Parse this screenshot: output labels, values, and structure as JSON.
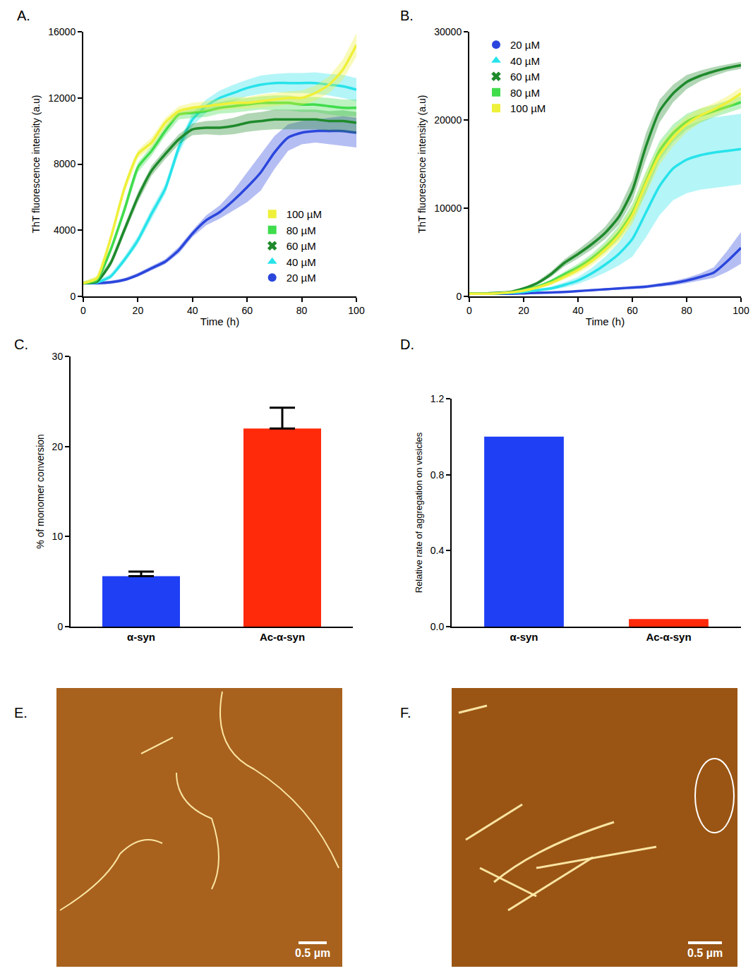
{
  "chart_data": [
    {
      "panel": "A.",
      "type": "line",
      "x_label": "Time (h)",
      "y_label": "ThT fluorescence intensity (a.u)",
      "x": [
        0,
        5,
        10,
        15,
        20,
        25,
        30,
        35,
        40,
        45,
        50,
        55,
        60,
        65,
        70,
        75,
        80,
        85,
        90,
        95,
        100
      ],
      "xlim": [
        0,
        100
      ],
      "xticks": [
        0,
        20,
        40,
        60,
        80,
        100
      ],
      "ylim": [
        0,
        16000
      ],
      "yticks": [
        0,
        4000,
        8000,
        12000,
        16000
      ],
      "legend": "lower right",
      "series": [
        {
          "name": "20 µM",
          "color": "#2b46dc",
          "marker": "circle",
          "values": [
            800,
            800,
            850,
            1000,
            1300,
            1700,
            2100,
            2800,
            3800,
            4600,
            5100,
            5800,
            6600,
            7500,
            8700,
            9600,
            9900,
            10000,
            10000,
            10000,
            9900
          ],
          "error": [
            100,
            100,
            100,
            100,
            120,
            150,
            150,
            200,
            200,
            300,
            400,
            600,
            900,
            1100,
            1000,
            800,
            700,
            700,
            800,
            900,
            900
          ]
        },
        {
          "name": "40 µM",
          "color": "#27e3ea",
          "marker": "triangle-up",
          "values": [
            800,
            850,
            1200,
            2200,
            3400,
            5000,
            6500,
            9000,
            10700,
            11500,
            12000,
            12300,
            12600,
            12800,
            12900,
            12900,
            12900,
            12900,
            12800,
            12700,
            12500
          ],
          "error": [
            100,
            100,
            150,
            200,
            250,
            300,
            300,
            350,
            400,
            400,
            450,
            500,
            500,
            550,
            550,
            600,
            600,
            650,
            650,
            700,
            700
          ]
        },
        {
          "name": "60 µM",
          "color": "#1f8a2c",
          "marker": "x",
          "values": [
            800,
            900,
            2000,
            4000,
            6000,
            7600,
            8600,
            9500,
            10100,
            10200,
            10200,
            10300,
            10500,
            10600,
            10700,
            10700,
            10700,
            10700,
            10600,
            10600,
            10500
          ],
          "error": [
            100,
            100,
            200,
            250,
            300,
            300,
            300,
            300,
            350,
            400,
            450,
            500,
            550,
            550,
            600,
            600,
            600,
            600,
            600,
            650,
            650
          ]
        },
        {
          "name": "80 µM",
          "color": "#3fdc4c",
          "marker": "square",
          "values": [
            800,
            1000,
            2800,
            5200,
            7800,
            8800,
            10000,
            11000,
            11100,
            11200,
            11400,
            11500,
            11600,
            11700,
            11700,
            11700,
            11600,
            11600,
            11500,
            11400,
            11400
          ],
          "error": [
            100,
            150,
            200,
            250,
            300,
            300,
            300,
            300,
            300,
            350,
            350,
            400,
            400,
            400,
            450,
            450,
            450,
            450,
            500,
            500,
            500
          ]
        },
        {
          "name": "100 µM",
          "color": "#eef03a",
          "marker": "square",
          "values": [
            800,
            1100,
            3500,
            6500,
            8600,
            9300,
            10500,
            11200,
            11400,
            11500,
            11600,
            11700,
            11700,
            11800,
            11900,
            12000,
            12000,
            12300,
            12800,
            13700,
            15200
          ],
          "error": [
            100,
            150,
            200,
            250,
            250,
            300,
            300,
            300,
            300,
            300,
            350,
            350,
            350,
            400,
            400,
            400,
            450,
            450,
            500,
            600,
            700
          ]
        }
      ]
    },
    {
      "panel": "B.",
      "type": "line",
      "x_label": "Time (h)",
      "y_label": "ThT fluorescence intensity (a.u)",
      "x": [
        0,
        5,
        10,
        15,
        20,
        25,
        30,
        35,
        40,
        45,
        50,
        55,
        60,
        65,
        70,
        75,
        80,
        85,
        90,
        95,
        100
      ],
      "xlim": [
        0,
        100
      ],
      "xticks": [
        0,
        20,
        40,
        60,
        80,
        100
      ],
      "ylim": [
        0,
        30000
      ],
      "yticks": [
        0,
        10000,
        20000,
        30000
      ],
      "legend": "upper left",
      "series": [
        {
          "name": "20 µM",
          "color": "#2b46dc",
          "marker": "circle",
          "values": [
            300,
            300,
            300,
            300,
            350,
            400,
            450,
            500,
            600,
            700,
            800,
            900,
            1000,
            1100,
            1300,
            1500,
            1800,
            2200,
            2700,
            4000,
            5500
          ],
          "error": [
            50,
            50,
            50,
            50,
            50,
            60,
            70,
            80,
            90,
            100,
            120,
            140,
            160,
            180,
            200,
            250,
            300,
            400,
            600,
            1200,
            1800
          ]
        },
        {
          "name": "40 µM",
          "color": "#27e3ea",
          "marker": "triangle-up",
          "values": [
            300,
            300,
            350,
            400,
            500,
            700,
            900,
            1300,
            1800,
            2600,
            3600,
            4800,
            6500,
            9500,
            12500,
            14500,
            15500,
            16000,
            16300,
            16500,
            16700
          ],
          "error": [
            50,
            50,
            60,
            80,
            100,
            150,
            200,
            300,
            400,
            600,
            900,
            1300,
            2000,
            2800,
            3300,
            3600,
            3800,
            3900,
            4000,
            4000,
            4000
          ]
        },
        {
          "name": "60 µM",
          "color": "#1f8a2c",
          "marker": "x",
          "values": [
            300,
            300,
            400,
            500,
            900,
            1500,
            2500,
            3800,
            4800,
            5900,
            7200,
            9000,
            12000,
            17000,
            21000,
            23000,
            24300,
            25000,
            25500,
            25900,
            26200
          ],
          "error": [
            50,
            50,
            80,
            100,
            150,
            200,
            300,
            400,
            500,
            600,
            700,
            900,
            1200,
            1500,
            1300,
            1000,
            800,
            600,
            500,
            400,
            400
          ]
        },
        {
          "name": "80 µM",
          "color": "#3fdc4c",
          "marker": "square",
          "values": [
            300,
            300,
            350,
            450,
            700,
            1100,
            1700,
            2500,
            3300,
            4300,
            5600,
            7200,
            9500,
            13000,
            16500,
            18500,
            19800,
            20500,
            21000,
            21500,
            22000
          ],
          "error": [
            50,
            50,
            60,
            80,
            100,
            150,
            200,
            300,
            400,
            500,
            600,
            800,
            1000,
            1200,
            1100,
            1000,
            900,
            800,
            700,
            700,
            700
          ]
        },
        {
          "name": "100 µM",
          "color": "#eef03a",
          "marker": "square",
          "values": [
            300,
            300,
            350,
            450,
            650,
            1000,
            1500,
            2200,
            3000,
            4000,
            5300,
            6900,
            9200,
            12800,
            16000,
            18000,
            19500,
            20500,
            21200,
            22000,
            23000
          ],
          "error": [
            50,
            50,
            60,
            80,
            100,
            150,
            200,
            300,
            400,
            500,
            600,
            800,
            1000,
            1200,
            1100,
            1000,
            900,
            800,
            700,
            700,
            700
          ]
        }
      ]
    },
    {
      "panel": "C.",
      "type": "bar",
      "y_label": "% of monomer conversion",
      "categories": [
        "α-syn",
        "Ac-α-syn"
      ],
      "values": [
        5.6,
        22.0
      ],
      "error": [
        0.5,
        2.3
      ],
      "colors": [
        "#1f3ff5",
        "#ff2a0a"
      ],
      "ylim": [
        0,
        30
      ],
      "yticks": [
        0,
        10,
        20,
        30
      ]
    },
    {
      "panel": "D.",
      "type": "bar",
      "y_label": "Relative rate of aggregation on vesicles",
      "categories": [
        "α-syn",
        "Ac-α-syn"
      ],
      "values": [
        1.0,
        0.04
      ],
      "colors": [
        "#1f3ff5",
        "#ff2a0a"
      ],
      "ylim": [
        0,
        1.2
      ],
      "yticks": [
        {
          "value": 0,
          "label": "0.0"
        },
        0.4,
        0.8,
        1.2
      ]
    }
  ],
  "images": [
    {
      "panel": "E.",
      "scale_bar": "0.5 µm"
    },
    {
      "panel": "F.",
      "scale_bar": "0.5 µm"
    }
  ]
}
